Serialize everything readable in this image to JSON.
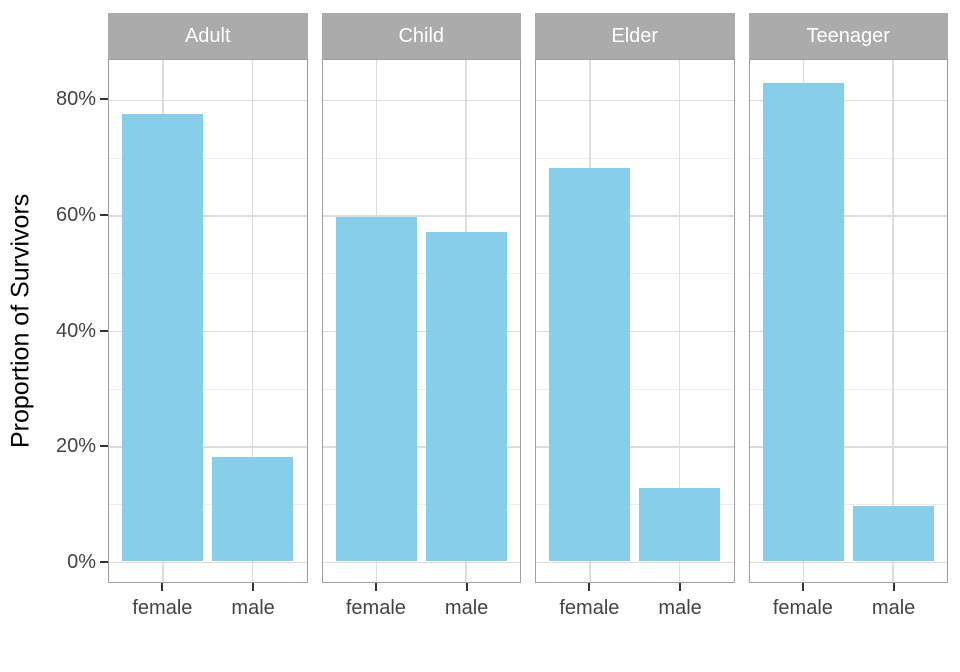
{
  "chart_data": {
    "type": "bar",
    "title": "",
    "xlabel": "",
    "ylabel": "Proportion of Survivors",
    "categories": [
      "female",
      "male"
    ],
    "facets": [
      {
        "label": "Adult",
        "values": [
          77.3,
          18.0
        ]
      },
      {
        "label": "Child",
        "values": [
          59.4,
          56.9
        ]
      },
      {
        "label": "Elder",
        "values": [
          68.0,
          12.5
        ]
      },
      {
        "label": "Teenager",
        "values": [
          82.6,
          9.4
        ]
      }
    ],
    "y_ticks": [
      "0%",
      "20%",
      "40%",
      "60%",
      "80%"
    ],
    "y_tick_values": [
      0,
      20,
      40,
      60,
      80
    ],
    "y_minor_values": [
      10,
      30,
      50,
      70
    ],
    "ylim": [
      -3.7,
      87.7
    ],
    "grid": true,
    "legend_position": "none",
    "colors": {
      "bar_fill": "#87CEEB",
      "strip_bg": "#ABABAB",
      "strip_text": "#FFFFFF",
      "panel_border": "#9E9E9E",
      "grid_major": "#DDDDDD",
      "grid_minor": "#ECECEC",
      "axis_text": "#444444",
      "tick_mark": "#333333",
      "y_title": "#000000",
      "background": "#FFFFFF"
    }
  }
}
